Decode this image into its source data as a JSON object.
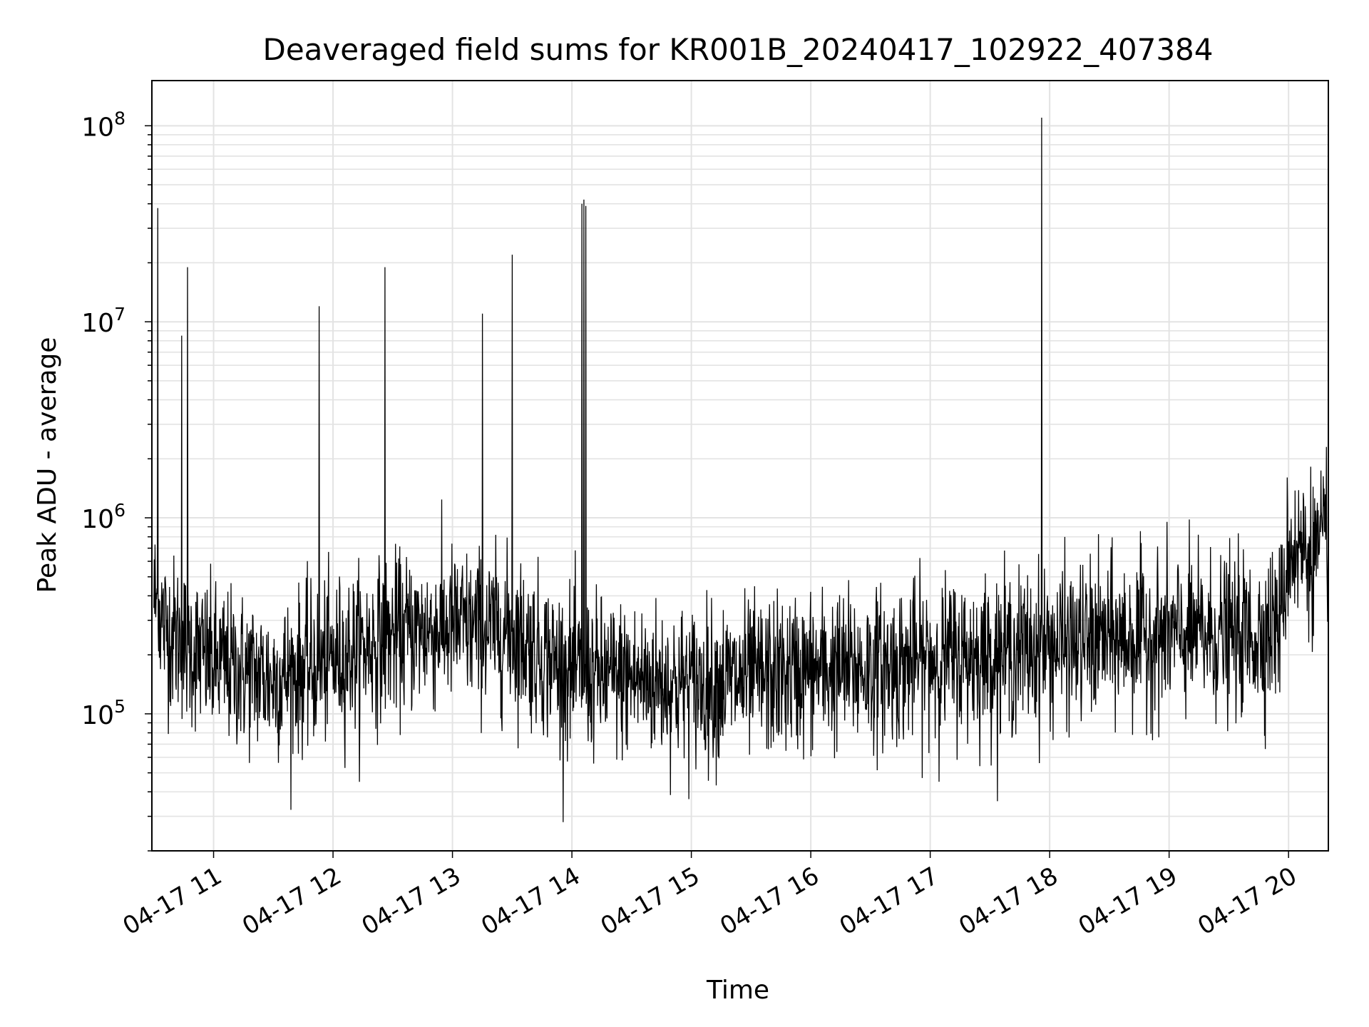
{
  "colors": {
    "background": "#ffffff",
    "line": "#000000",
    "grid": "#e3e3e3",
    "axes": "#000000"
  },
  "chart_data": {
    "type": "line",
    "title": "Deaveraged field sums for KR001B_20240417_102922_407384",
    "xlabel": "Time",
    "ylabel": "Peak ADU - average",
    "yscale": "log",
    "grid": true,
    "xlim": [
      "2024-04-17 10:29",
      "2024-04-17 20:20"
    ],
    "ylim": [
      20000,
      170000000
    ],
    "x_ticks": [
      {
        "value": "2024-04-17 11:00",
        "label": "04-17 11"
      },
      {
        "value": "2024-04-17 12:00",
        "label": "04-17 12"
      },
      {
        "value": "2024-04-17 13:00",
        "label": "04-17 13"
      },
      {
        "value": "2024-04-17 14:00",
        "label": "04-17 14"
      },
      {
        "value": "2024-04-17 15:00",
        "label": "04-17 15"
      },
      {
        "value": "2024-04-17 16:00",
        "label": "04-17 16"
      },
      {
        "value": "2024-04-17 17:00",
        "label": "04-17 17"
      },
      {
        "value": "2024-04-17 18:00",
        "label": "04-17 18"
      },
      {
        "value": "2024-04-17 19:00",
        "label": "04-17 19"
      },
      {
        "value": "2024-04-17 20:00",
        "label": "04-17 20"
      }
    ],
    "y_ticks": [
      {
        "value": 100000,
        "base": "10",
        "exp": "5"
      },
      {
        "value": 1000000,
        "base": "10",
        "exp": "6"
      },
      {
        "value": 10000000,
        "base": "10",
        "exp": "7"
      },
      {
        "value": 100000000,
        "base": "10",
        "exp": "8"
      }
    ],
    "series": [
      {
        "color": "#000000",
        "baseline_anchors": [
          [
            "2024-04-17 10:30",
            400000
          ],
          [
            "2024-04-17 10:36",
            270000
          ],
          [
            "2024-04-17 11:00",
            180000
          ],
          [
            "2024-04-17 11:30",
            150000
          ],
          [
            "2024-04-17 12:00",
            190000
          ],
          [
            "2024-04-17 12:30",
            250000
          ],
          [
            "2024-04-17 13:00",
            280000
          ],
          [
            "2024-04-17 13:30",
            260000
          ],
          [
            "2024-04-17 14:00",
            160000
          ],
          [
            "2024-04-17 14:30",
            150000
          ],
          [
            "2024-04-17 15:00",
            140000
          ],
          [
            "2024-04-17 15:30",
            150000
          ],
          [
            "2024-04-17 16:00",
            165000
          ],
          [
            "2024-04-17 16:30",
            170000
          ],
          [
            "2024-04-17 17:00",
            190000
          ],
          [
            "2024-04-17 17:30",
            200000
          ],
          [
            "2024-04-17 18:00",
            220000
          ],
          [
            "2024-04-17 18:30",
            240000
          ],
          [
            "2024-04-17 19:00",
            250000
          ],
          [
            "2024-04-17 19:45",
            250000
          ],
          [
            "2024-04-17 19:56",
            300000
          ],
          [
            "2024-04-17 20:00",
            700000
          ],
          [
            "2024-04-17 20:20",
            650000
          ]
        ],
        "spikes": [
          [
            "2024-04-17 10:32",
            38000000
          ],
          [
            "2024-04-17 10:44",
            8500000
          ],
          [
            "2024-04-17 10:47",
            19000000
          ],
          [
            "2024-04-17 11:53",
            12000000
          ],
          [
            "2024-04-17 12:26",
            19000000
          ],
          [
            "2024-04-17 13:15",
            11000000
          ],
          [
            "2024-04-17 13:30",
            22000000
          ],
          [
            "2024-04-17 14:05",
            40000000
          ],
          [
            "2024-04-17 14:06",
            42000000
          ],
          [
            "2024-04-17 14:07",
            39000000
          ],
          [
            "2024-04-17 17:56",
            110000000
          ],
          [
            "2024-04-17 20:19",
            2300000
          ]
        ]
      }
    ]
  }
}
